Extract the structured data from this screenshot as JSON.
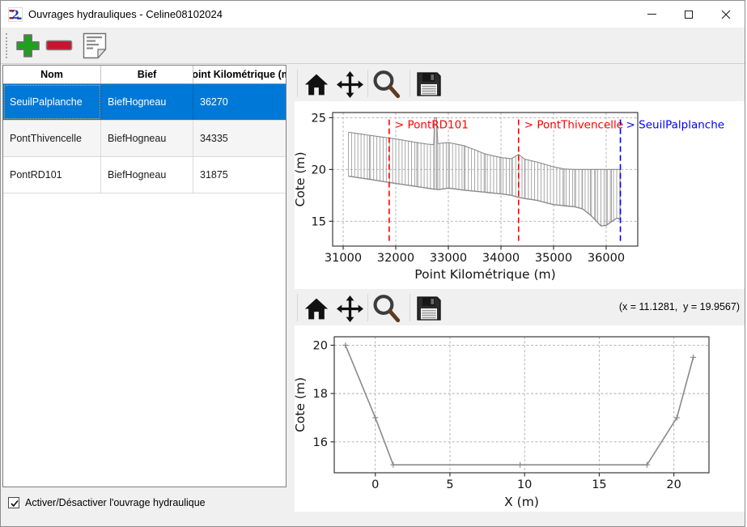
{
  "window": {
    "title": "Ouvrages hydrauliques - Celine08102024",
    "app_icon": "pamhyr2-app-icon",
    "controls": [
      {
        "name": "minimize"
      },
      {
        "name": "maximize"
      },
      {
        "name": "close"
      }
    ]
  },
  "toolbar": {
    "buttons": [
      {
        "name": "add-ouvrage",
        "icon": "plus-icon",
        "color": "#1ca21c"
      },
      {
        "name": "delete-ouvrage",
        "icon": "minus-icon",
        "color": "#c81430"
      },
      {
        "name": "edit-notes",
        "icon": "document-icon"
      }
    ]
  },
  "table": {
    "columns": [
      "Nom",
      "Bief",
      "Point Kilométrique (m)"
    ],
    "rows": [
      [
        "SeuilPalplanche",
        "BiefHogneau",
        "36270"
      ],
      [
        "PontThivencelle",
        "BiefHogneau",
        "34335"
      ],
      [
        "PontRD101",
        "BiefHogneau",
        "31875"
      ]
    ],
    "selected_row": 0,
    "selection_color": "#0078d7"
  },
  "footer": {
    "checkbox_label": "Activer/Désactiver l'ouvrage hydraulique",
    "checked": true
  },
  "plot_toolbars": {
    "icons": [
      "home-icon",
      "pan-icon",
      "zoom-icon",
      "save-icon"
    ],
    "cursor_readout": "(x = 11.1281,  y = 19.9567)"
  },
  "colors": {
    "marker_red": "#ff0000",
    "marker_blue": "#0000ff",
    "profile_gray": "#9e9e9e",
    "envelope_gray": "#8a8a8a",
    "toolbar_bg": "#f0f0f0"
  },
  "chart_data": [
    {
      "id": "profile-longitudinal",
      "type": "line",
      "title": "",
      "xlabel": "Point Kilométrique (m)",
      "ylabel": "Cote (m)",
      "xlim": [
        30800,
        36600
      ],
      "ylim": [
        12.6,
        25.5
      ],
      "xticks": [
        31000,
        32000,
        33000,
        34000,
        35000,
        36000
      ],
      "yticks": [
        15,
        20,
        25
      ],
      "grid": true,
      "legend": "none",
      "comb_step": 60,
      "envelope": {
        "x": [
          31100,
          31500,
          32000,
          32400,
          32600,
          32720,
          32740,
          32775,
          32800,
          33000,
          33300,
          33700,
          34000,
          34200,
          34335,
          34450,
          34700,
          35000,
          35200,
          35400,
          35550,
          35700,
          35800,
          35900,
          36000,
          36100,
          36200,
          36270
        ],
        "top": [
          23.6,
          23.3,
          22.95,
          22.6,
          22.45,
          22.4,
          25.0,
          25.0,
          22.5,
          22.6,
          22.3,
          21.5,
          21.15,
          21.05,
          21.45,
          21.0,
          20.7,
          20.25,
          20.05,
          20.0,
          20.0,
          20.0,
          20.0,
          20.0,
          20.0,
          20.0,
          20.0,
          20.0
        ],
        "bottom": [
          19.35,
          19.05,
          18.65,
          18.35,
          18.2,
          18.1,
          18.1,
          18.1,
          18.05,
          18.2,
          18.0,
          17.8,
          17.65,
          17.5,
          17.3,
          17.2,
          17.0,
          16.6,
          16.5,
          16.4,
          16.2,
          15.6,
          15.1,
          14.55,
          14.6,
          14.95,
          15.3,
          15.2
        ]
      },
      "markers": [
        {
          "label": "> PontRD101",
          "x": 31875,
          "color": "#ff0000"
        },
        {
          "label": "> PontThivencelle",
          "x": 34335,
          "color": "#ff0000"
        },
        {
          "label": "> SeuilPalplanche",
          "x": 36270,
          "color": "#0000ff"
        }
      ],
      "marker_extent": [
        13.1,
        24.9
      ]
    },
    {
      "id": "cross-section",
      "type": "line",
      "title": "",
      "xlabel": "X (m)",
      "ylabel": "Cote (m)",
      "xlim": [
        -2.75,
        22.35
      ],
      "ylim": [
        14.72,
        20.35
      ],
      "xticks": [
        0,
        5,
        10,
        15,
        20
      ],
      "yticks": [
        16,
        18,
        20
      ],
      "grid": true,
      "legend": "none",
      "series": [
        {
          "name": "section-geometry",
          "color": "#8a8a8a",
          "marker": "plus",
          "x": [
            -2,
            0,
            1.2,
            9.7,
            18.2,
            20.2,
            21.3
          ],
          "y": [
            20,
            17,
            15.05,
            15.05,
            15.05,
            17,
            19.5
          ]
        }
      ]
    }
  ]
}
